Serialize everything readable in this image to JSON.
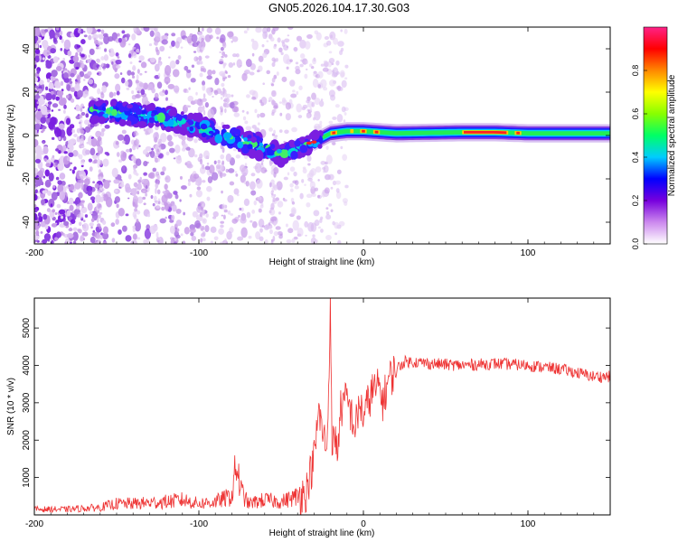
{
  "title": "GN05.2026.104.17.30.G03",
  "chart_data": [
    {
      "type": "heatmap",
      "name": "spectrogram",
      "xlabel": "Height of straight line (km)",
      "ylabel": "Frequency (Hz)",
      "xlim": [
        -200,
        150
      ],
      "ylim": [
        -50,
        50
      ],
      "x_ticks": [
        -200,
        -100,
        0,
        100
      ],
      "x_tick_labels": [
        "-200",
        "-100",
        "0",
        "100"
      ],
      "y_ticks": [
        -40,
        -20,
        0,
        20,
        40
      ],
      "y_tick_labels": [
        "-40",
        "-20",
        "0",
        "20",
        "40"
      ],
      "ridge": {
        "x": [
          -160,
          -140,
          -120,
          -100,
          -80,
          -60,
          -50,
          -40,
          -30,
          -20,
          -10,
          0,
          20,
          60,
          80,
          100,
          150
        ],
        "y": [
          11,
          10,
          8,
          4,
          -1,
          -6,
          -9,
          -6,
          -3,
          1,
          2,
          2,
          1,
          1.5,
          1.5,
          1,
          1
        ]
      },
      "colorbar": {
        "label": "Normalized spectral amplitude",
        "range": [
          0,
          1
        ],
        "ticks": [
          0,
          0.2,
          0.4,
          0.6,
          0.8
        ],
        "tick_labels": [
          "0.0",
          "0.2",
          "0.4",
          "0.6",
          "0.8"
        ],
        "colors": [
          "#ffffff",
          "#cc88ee",
          "#7700dd",
          "#0000ff",
          "#00ccff",
          "#00ff66",
          "#88ff00",
          "#ffff00",
          "#ff8800",
          "#ff0000",
          "#ff2288"
        ]
      }
    },
    {
      "type": "line",
      "name": "snr",
      "xlabel": "Height of straight line (km)",
      "ylabel": "SNR (10 * v/v)",
      "xlim": [
        -200,
        150
      ],
      "ylim": [
        0,
        5800
      ],
      "x_ticks": [
        -200,
        -100,
        0,
        100
      ],
      "x_tick_labels": [
        "-200",
        "-100",
        "0",
        "100"
      ],
      "y_ticks": [
        1000,
        2000,
        3000,
        4000,
        5000
      ],
      "y_tick_labels": [
        "1000",
        "2000",
        "3000",
        "4000",
        "5000"
      ],
      "series": [
        {
          "name": "SNR",
          "color": "#ee3333",
          "x": [
            -200,
            -180,
            -160,
            -150,
            -140,
            -120,
            -110,
            -100,
            -90,
            -80,
            -77,
            -75,
            -70,
            -60,
            -50,
            -40,
            -35,
            -30,
            -27,
            -25,
            -22,
            -20,
            -19,
            -18,
            -16,
            -14,
            -10,
            -5,
            -2,
            0,
            5,
            10,
            12,
            15,
            20,
            25,
            30,
            40,
            60,
            80,
            100,
            120,
            140,
            150
          ],
          "y": [
            150,
            150,
            200,
            300,
            300,
            350,
            400,
            300,
            350,
            500,
            1400,
            700,
            300,
            400,
            350,
            500,
            600,
            1500,
            2800,
            2200,
            1800,
            5800,
            1000,
            2500,
            1600,
            2800,
            3100,
            2300,
            3000,
            2600,
            3300,
            3400,
            3000,
            3600,
            3900,
            4100,
            4100,
            4050,
            4000,
            4050,
            4000,
            3900,
            3700,
            3700
          ]
        }
      ]
    }
  ]
}
